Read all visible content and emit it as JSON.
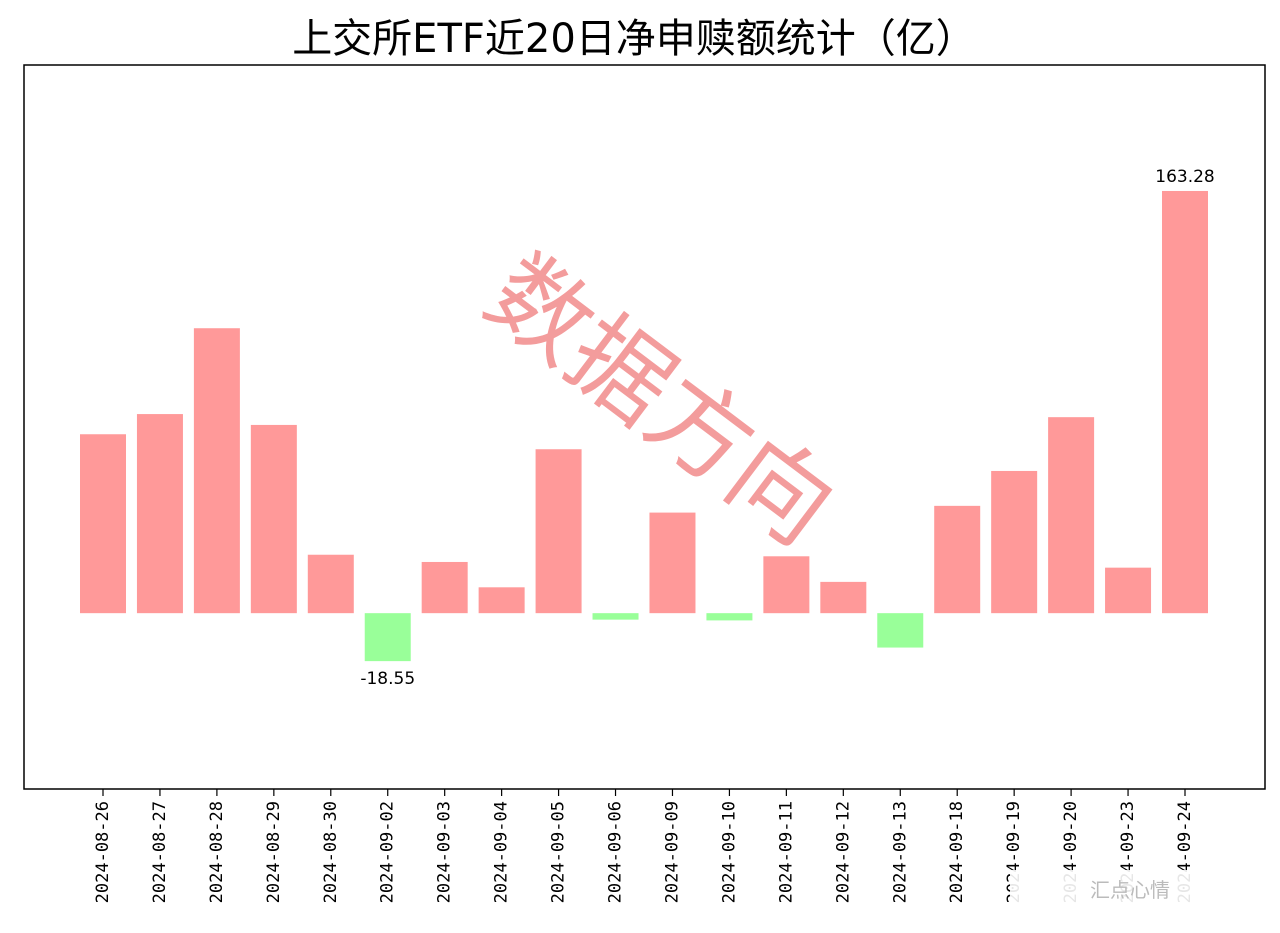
{
  "chart_data": {
    "type": "bar",
    "title": "上交所ETF近20日净申赎额统计（亿）",
    "xlabel": "",
    "ylabel": "",
    "categories": [
      "2024-08-26",
      "2024-08-27",
      "2024-08-28",
      "2024-08-29",
      "2024-08-30",
      "2024-09-02",
      "2024-09-03",
      "2024-09-04",
      "2024-09-05",
      "2024-09-06",
      "2024-09-09",
      "2024-09-10",
      "2024-09-11",
      "2024-09-12",
      "2024-09-13",
      "2024-09-18",
      "2024-09-19",
      "2024-09-20",
      "2024-09-23",
      "2024-09-24"
    ],
    "values": [
      69.2,
      77.0,
      110.2,
      72.8,
      22.6,
      -18.55,
      19.8,
      10.0,
      63.4,
      -2.5,
      38.9,
      -2.8,
      22.0,
      12.1,
      -13.3,
      41.5,
      55.0,
      75.8,
      17.6,
      163.28
    ],
    "data_labels": [
      {
        "index": 5,
        "text": "-18.55"
      },
      {
        "index": 19,
        "text": "163.28"
      }
    ],
    "ylim": [
      -68,
      212
    ],
    "positive_color": "#ff9999",
    "negative_color": "#99ff99",
    "grid": false,
    "legend": "none"
  },
  "watermark": {
    "text": "数据方向",
    "color": "#f28b8b"
  },
  "footer_overlay": {
    "text": "汇点心情"
  }
}
